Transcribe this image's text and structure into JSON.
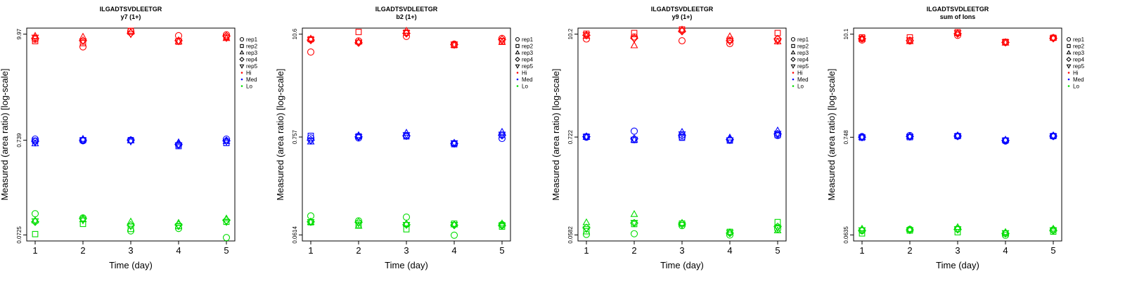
{
  "colors": {
    "Hi": "#ff0000",
    "Med": "#0000ff",
    "Lo": "#00dd00"
  },
  "legend": {
    "reps": [
      {
        "label": "rep1",
        "shape": "circle"
      },
      {
        "label": "rep2",
        "shape": "square"
      },
      {
        "label": "rep3",
        "shape": "triangle-up"
      },
      {
        "label": "rep4",
        "shape": "diamond"
      },
      {
        "label": "rep5",
        "shape": "triangle-down"
      }
    ],
    "groups": [
      {
        "label": "Hi",
        "color": "#ff0000"
      },
      {
        "label": "Med",
        "color": "#0000ff"
      },
      {
        "label": "Lo",
        "color": "#00dd00"
      }
    ]
  },
  "chart_data": [
    {
      "type": "scatter",
      "title": "ILGADTSVDLEETGR",
      "subtitle": "y7 (1+)",
      "xlabel": "Time (day)",
      "ylabel": "Measured (area ratio) [log-scale]",
      "log_y": true,
      "x_ticks": [
        1,
        2,
        3,
        4,
        5
      ],
      "y_ticks": [
        "0.0725",
        "0.739",
        "9.97"
      ],
      "ylim": [
        0.0725,
        9.97
      ],
      "legend_position": "right",
      "series": {
        "Hi": {
          "rep1": [
            8.8,
            7.3,
            10.7,
            9.6,
            9.8
          ],
          "rep2": [
            8.4,
            8.0,
            10.8,
            8.3,
            9.3
          ],
          "rep3": [
            9.5,
            9.3,
            10.5,
            8.3,
            9.0
          ],
          "rep4": [
            9.0,
            8.5,
            10.2,
            8.5,
            9.5
          ],
          "rep5": [
            9.2,
            8.4,
            10.0,
            8.4,
            9.1
          ]
        },
        "Med": {
          "rep1": [
            0.76,
            0.73,
            0.74,
            0.66,
            0.76
          ],
          "rep2": [
            0.73,
            0.74,
            0.74,
            0.64,
            0.69
          ],
          "rep3": [
            0.68,
            0.76,
            0.73,
            0.7,
            0.72
          ],
          "rep4": [
            0.72,
            0.74,
            0.74,
            0.67,
            0.73
          ],
          "rep5": [
            0.7,
            0.74,
            0.72,
            0.66,
            0.72
          ]
        },
        "Lo": {
          "rep1": [
            0.122,
            0.11,
            0.08,
            0.085,
            0.068
          ],
          "rep2": [
            0.074,
            0.095,
            0.084,
            0.09,
            0.1
          ],
          "rep3": [
            0.103,
            0.106,
            0.1,
            0.097,
            0.108
          ],
          "rep4": [
            0.1,
            0.108,
            0.092,
            0.093,
            0.104
          ],
          "rep5": [
            0.102,
            0.104,
            0.09,
            0.09,
            0.1
          ]
        }
      }
    },
    {
      "type": "scatter",
      "title": "ILGADTSVDLEETGR",
      "subtitle": "b2 (1+)",
      "xlabel": "Time (day)",
      "ylabel": "Measured (area ratio) [log-scale]",
      "log_y": true,
      "x_ticks": [
        1,
        2,
        3,
        4,
        5
      ],
      "y_ticks": [
        "0.0614",
        "0.757",
        "10.6"
      ],
      "ylim": [
        0.0614,
        10.6
      ],
      "legend_position": "right",
      "series": {
        "Hi": {
          "rep1": [
            6.7,
            8.9,
            10.0,
            8.2,
            9.5
          ],
          "rep2": [
            9.3,
            11.2,
            11.0,
            8.0,
            8.8
          ],
          "rep3": [
            9.4,
            8.7,
            11.5,
            8.0,
            8.6
          ],
          "rep4": [
            9.1,
            8.5,
            10.8,
            8.1,
            9.2
          ],
          "rep5": [
            9.2,
            8.6,
            11.0,
            8.2,
            9.0
          ]
        },
        "Med": {
          "rep1": [
            0.74,
            0.74,
            0.78,
            0.64,
            0.73
          ],
          "rep2": [
            0.78,
            0.77,
            0.77,
            0.63,
            0.8
          ],
          "rep3": [
            0.67,
            0.79,
            0.84,
            0.65,
            0.86
          ],
          "rep4": [
            0.7,
            0.76,
            0.78,
            0.64,
            0.79
          ],
          "rep5": [
            0.69,
            0.76,
            0.8,
            0.65,
            0.81
          ]
        },
        "Lo": {
          "rep1": [
            0.1,
            0.088,
            0.097,
            0.061,
            0.08
          ],
          "rep2": [
            0.085,
            0.079,
            0.071,
            0.082,
            0.076
          ],
          "rep3": [
            0.085,
            0.077,
            0.082,
            0.08,
            0.082
          ],
          "rep4": [
            0.086,
            0.085,
            0.08,
            0.079,
            0.078
          ],
          "rep5": [
            0.086,
            0.083,
            0.08,
            0.08,
            0.079
          ]
        }
      }
    },
    {
      "type": "scatter",
      "title": "ILGADTSVDLEETGR",
      "subtitle": "y9 (1+)",
      "xlabel": "Time (day)",
      "ylabel": "Measured (area ratio) [log-scale]",
      "log_y": true,
      "x_ticks": [
        1,
        2,
        3,
        4,
        5
      ],
      "y_ticks": [
        "0.0582",
        "0.722",
        "10.2"
      ],
      "ylim": [
        0.0582,
        10.2
      ],
      "legend_position": "right",
      "series": {
        "Hi": {
          "rep1": [
            9.0,
            9.5,
            8.6,
            8.0,
            8.9
          ],
          "rep2": [
            10.3,
            10.5,
            11.5,
            8.8,
            10.5
          ],
          "rep3": [
            9.7,
            7.6,
            11.4,
            9.6,
            8.4
          ],
          "rep4": [
            9.9,
            9.2,
            11.0,
            8.6,
            9.0
          ],
          "rep5": [
            10.0,
            9.0,
            11.2,
            8.5,
            8.6
          ]
        },
        "Med": {
          "rep1": [
            0.72,
            0.84,
            0.72,
            0.67,
            0.75
          ],
          "rep2": [
            0.73,
            0.67,
            0.71,
            0.66,
            0.76
          ],
          "rep3": [
            0.72,
            0.67,
            0.82,
            0.71,
            0.85
          ],
          "rep4": [
            0.73,
            0.69,
            0.75,
            0.68,
            0.78
          ],
          "rep5": [
            0.73,
            0.68,
            0.78,
            0.67,
            0.79
          ]
        },
        "Lo": {
          "rep1": [
            0.059,
            0.06,
            0.074,
            0.058,
            0.068
          ],
          "rep2": [
            0.064,
            0.077,
            0.078,
            0.063,
            0.081
          ],
          "rep3": [
            0.08,
            0.099,
            0.079,
            0.062,
            0.065
          ],
          "rep4": [
            0.07,
            0.079,
            0.077,
            0.061,
            0.072
          ],
          "rep5": [
            0.068,
            0.08,
            0.076,
            0.062,
            0.07
          ]
        }
      }
    },
    {
      "type": "scatter",
      "title": "ILGADTSVDLEETGR",
      "subtitle": "sum of Ions",
      "xlabel": "Time (day)",
      "ylabel": "Measured (area ratio) [log-scale]",
      "log_y": true,
      "x_ticks": [
        1,
        2,
        3,
        4,
        5
      ],
      "y_ticks": [
        "0.0635",
        "0.748",
        "10.1"
      ],
      "ylim": [
        0.0635,
        10.1
      ],
      "legend_position": "right",
      "series": {
        "Hi": {
          "rep1": [
            8.7,
            8.5,
            9.8,
            8.2,
            9.2
          ],
          "rep2": [
            9.3,
            9.3,
            10.6,
            8.3,
            9.2
          ],
          "rep3": [
            8.9,
            8.4,
            10.3,
            8.1,
            9.2
          ],
          "rep4": [
            9.0,
            8.6,
            10.2,
            8.2,
            9.1
          ],
          "rep5": [
            9.1,
            8.7,
            10.4,
            8.3,
            9.1
          ]
        },
        "Med": {
          "rep1": [
            0.76,
            0.78,
            0.77,
            0.68,
            0.77
          ],
          "rep2": [
            0.74,
            0.75,
            0.77,
            0.69,
            0.77
          ],
          "rep3": [
            0.75,
            0.76,
            0.78,
            0.7,
            0.78
          ],
          "rep4": [
            0.75,
            0.76,
            0.77,
            0.69,
            0.77
          ],
          "rep5": [
            0.75,
            0.76,
            0.77,
            0.69,
            0.77
          ]
        },
        "Lo": {
          "rep1": [
            0.071,
            0.073,
            0.074,
            0.063,
            0.072
          ],
          "rep2": [
            0.066,
            0.071,
            0.068,
            0.066,
            0.069
          ],
          "rep3": [
            0.074,
            0.073,
            0.077,
            0.068,
            0.074
          ],
          "rep4": [
            0.071,
            0.072,
            0.073,
            0.066,
            0.071
          ],
          "rep5": [
            0.072,
            0.072,
            0.074,
            0.067,
            0.072
          ]
        }
      }
    }
  ]
}
